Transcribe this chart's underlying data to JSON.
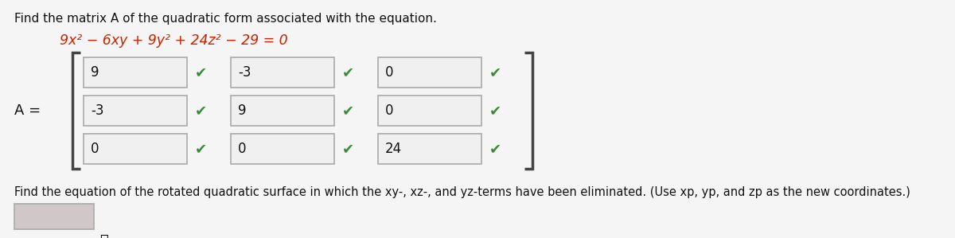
{
  "title_text": "Find the matrix A of the quadratic form associated with the equation.",
  "equation_parts": [
    {
      "text": "9x",
      "style": "normal"
    },
    {
      "text": "2",
      "style": "super"
    },
    {
      "text": " − 6xy + 9y",
      "style": "normal"
    },
    {
      "text": "2",
      "style": "super"
    },
    {
      "text": " + 24z",
      "style": "normal"
    },
    {
      "text": "2",
      "style": "super"
    },
    {
      "text": " − 29 = 0",
      "style": "normal"
    }
  ],
  "equation_color": "#cc2200",
  "A_label": "A =",
  "matrix": [
    [
      "9",
      "-3",
      "0"
    ],
    [
      "-3",
      "9",
      "0"
    ],
    [
      "0",
      "0",
      "24"
    ]
  ],
  "bottom_text": "Find the equation of the rotated quadratic surface in which the xy-, xz-, and yz-terms have been eliminated. (Use xp, yp, and zp as the new coordinates.)",
  "bg_color": "#e8e8e8",
  "content_bg": "#f5f5f5",
  "box_color": "#f0f0f0",
  "box_border": "#aaaaaa",
  "check_color": "#3a8a3a",
  "title_color": "#111111",
  "text_color": "#111111",
  "bracket_color": "#444444",
  "answer_box_color": "#d0c8c8"
}
